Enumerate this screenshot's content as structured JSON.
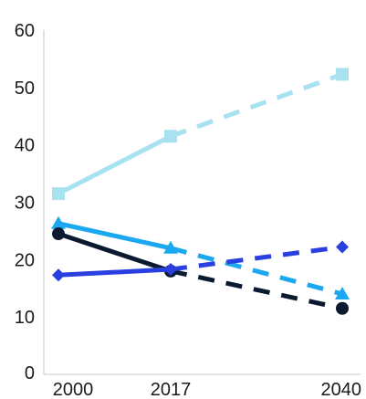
{
  "chart_data": {
    "type": "line",
    "x": [
      "2000",
      "2017",
      "2040"
    ],
    "ylim": [
      0,
      60
    ],
    "yticks": [
      "0",
      "10",
      "20",
      "30",
      "40",
      "50",
      "60"
    ],
    "grid": false,
    "legend": "none",
    "series": [
      {
        "values": [
          31.5,
          41.5,
          52.3
        ],
        "color": "#a8e1ef",
        "marker": "square",
        "projection_style": "dashed"
      },
      {
        "values": [
          26.3,
          22.0,
          14.0
        ],
        "color": "#1ba8f0",
        "marker": "triangle",
        "projection_style": "dashed"
      },
      {
        "values": [
          24.5,
          18.0,
          11.5
        ],
        "color": "#0b1a30",
        "marker": "circle",
        "projection_style": "dashed"
      },
      {
        "values": [
          17.3,
          18.3,
          22.2
        ],
        "color": "#2a3fe0",
        "marker": "diamond",
        "projection_style": "dashed"
      }
    ]
  }
}
